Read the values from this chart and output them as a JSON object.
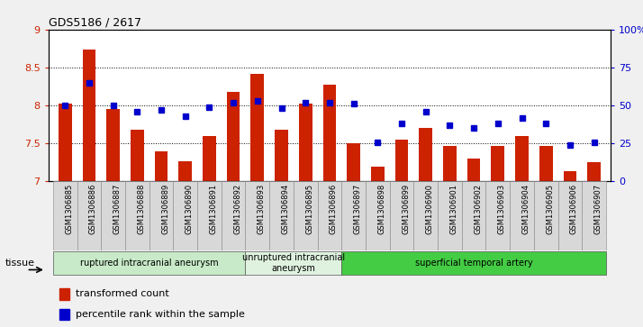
{
  "title": "GDS5186 / 2617",
  "samples": [
    "GSM1306885",
    "GSM1306886",
    "GSM1306887",
    "GSM1306888",
    "GSM1306889",
    "GSM1306890",
    "GSM1306891",
    "GSM1306892",
    "GSM1306893",
    "GSM1306894",
    "GSM1306895",
    "GSM1306896",
    "GSM1306897",
    "GSM1306898",
    "GSM1306899",
    "GSM1306900",
    "GSM1306901",
    "GSM1306902",
    "GSM1306903",
    "GSM1306904",
    "GSM1306905",
    "GSM1306906",
    "GSM1306907"
  ],
  "bar_values": [
    8.02,
    8.73,
    7.95,
    7.68,
    7.4,
    7.27,
    7.6,
    8.18,
    8.42,
    7.68,
    8.03,
    8.27,
    7.5,
    7.2,
    7.55,
    7.7,
    7.47,
    7.3,
    7.47,
    7.6,
    7.47,
    7.13,
    7.25
  ],
  "percentile_values": [
    50,
    65,
    50,
    46,
    47,
    43,
    49,
    52,
    53,
    48,
    52,
    52,
    51,
    26,
    38,
    46,
    37,
    35,
    38,
    42,
    38,
    24,
    26
  ],
  "bar_color": "#cc2200",
  "dot_color": "#0000cc",
  "ylim_left": [
    7,
    9
  ],
  "ylim_right": [
    0,
    100
  ],
  "yticks_left": [
    7,
    7.5,
    8,
    8.5,
    9
  ],
  "yticks_right": [
    0,
    25,
    50,
    75,
    100
  ],
  "ytick_labels_right": [
    "0",
    "25",
    "50",
    "75",
    "100%"
  ],
  "groups": [
    {
      "label": "ruptured intracranial aneurysm",
      "start": 0,
      "end": 8,
      "color": "#c8eac8"
    },
    {
      "label": "unruptured intracranial\naneurysm",
      "start": 8,
      "end": 12,
      "color": "#dff2df"
    },
    {
      "label": "superficial temporal artery",
      "start": 12,
      "end": 23,
      "color": "#44cc44"
    }
  ],
  "tissue_label": "tissue",
  "legend_bar_label": "transformed count",
  "legend_dot_label": "percentile rank within the sample",
  "background_color": "#f0f0f0",
  "plot_bg_color": "#ffffff",
  "xtick_bg_color": "#d8d8d8"
}
